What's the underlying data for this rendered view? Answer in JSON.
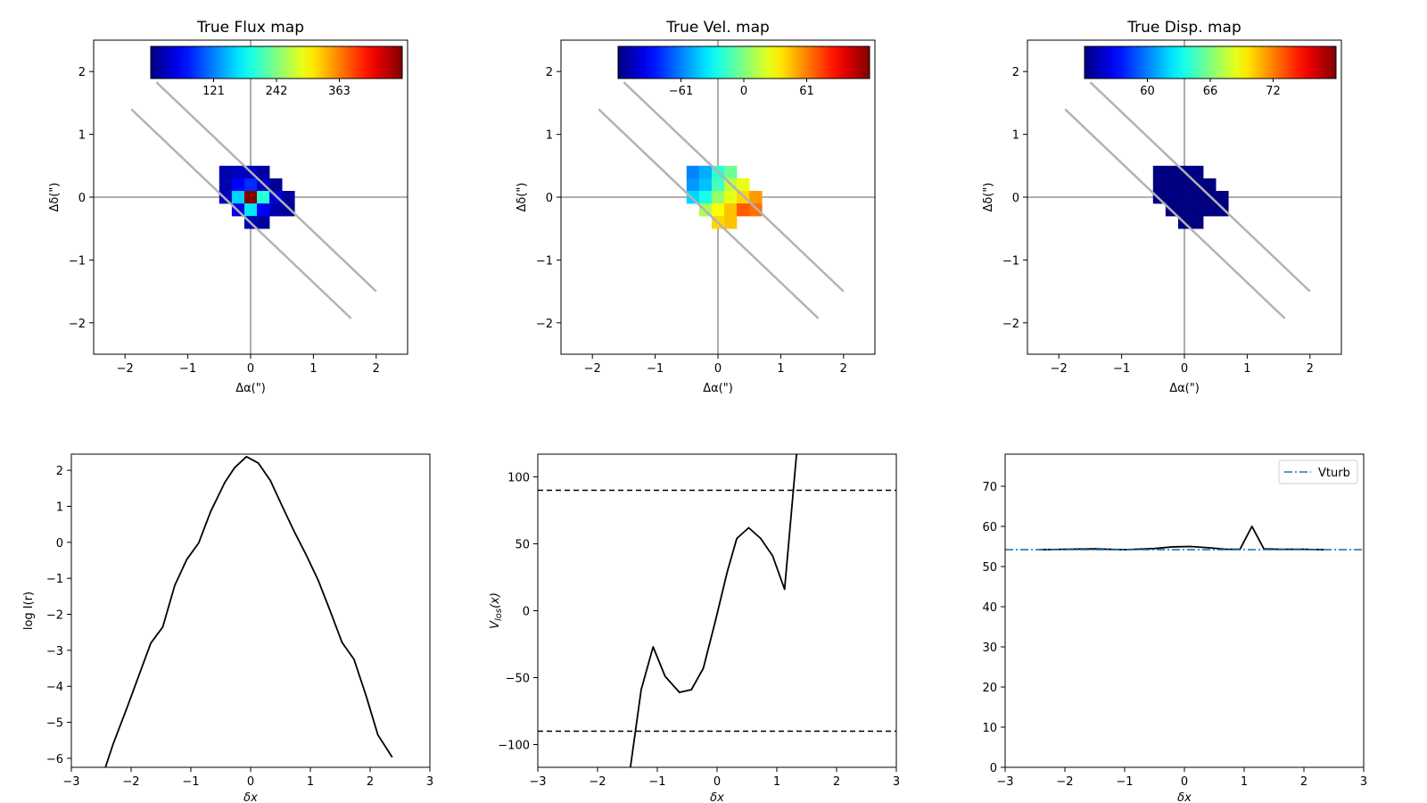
{
  "figure": {
    "background": "#ffffff"
  },
  "chart_data": [
    {
      "id": "flux-map",
      "type": "heatmap",
      "title": "True Flux map",
      "xlabel": "Δα(\")",
      "ylabel": "Δδ(\")",
      "xlim": [
        -2.5,
        2.5
      ],
      "ylim": [
        -2.5,
        2.5
      ],
      "xticks": [
        -2,
        -1,
        0,
        1,
        2
      ],
      "yticks": [
        -2,
        -1,
        0,
        1,
        2
      ],
      "xtick_labels": [
        "−2",
        "−1",
        "0",
        "1",
        "2"
      ],
      "ytick_labels": [
        "−2",
        "−1",
        "0",
        "1",
        "2"
      ],
      "colormap": "jet",
      "vmin": 0,
      "vmax": 484,
      "colorbar": {
        "ticks": [
          121,
          242,
          363
        ],
        "tick_labels": [
          "121",
          "242",
          "363"
        ],
        "location": "top-inset"
      },
      "pixel_size": 0.2,
      "cells": [
        {
          "x": -0.4,
          "y": 0.4,
          "v": 20
        },
        {
          "x": -0.2,
          "y": 0.4,
          "v": 30
        },
        {
          "x": 0.0,
          "y": 0.4,
          "v": 30
        },
        {
          "x": 0.2,
          "y": 0.4,
          "v": 15
        },
        {
          "x": -0.4,
          "y": 0.2,
          "v": 20
        },
        {
          "x": -0.2,
          "y": 0.2,
          "v": 60
        },
        {
          "x": 0.0,
          "y": 0.2,
          "v": 80
        },
        {
          "x": 0.2,
          "y": 0.2,
          "v": 30
        },
        {
          "x": 0.4,
          "y": 0.2,
          "v": 10
        },
        {
          "x": -0.4,
          "y": 0.0,
          "v": 30
        },
        {
          "x": -0.2,
          "y": 0.0,
          "v": 160
        },
        {
          "x": 0.0,
          "y": 0.0,
          "v": 484
        },
        {
          "x": 0.2,
          "y": 0.0,
          "v": 200
        },
        {
          "x": 0.4,
          "y": 0.0,
          "v": 40
        },
        {
          "x": 0.6,
          "y": 0.0,
          "v": 15
        },
        {
          "x": -0.2,
          "y": -0.2,
          "v": 50
        },
        {
          "x": 0.0,
          "y": -0.2,
          "v": 170
        },
        {
          "x": 0.2,
          "y": -0.2,
          "v": 60
        },
        {
          "x": 0.4,
          "y": -0.2,
          "v": 20
        },
        {
          "x": 0.6,
          "y": -0.2,
          "v": 10
        },
        {
          "x": 0.0,
          "y": -0.4,
          "v": 25
        },
        {
          "x": 0.2,
          "y": -0.4,
          "v": 15
        }
      ],
      "slit_lines": [
        {
          "x": [
            -1.5,
            2.0
          ],
          "y": [
            1.83,
            -1.5
          ]
        },
        {
          "x": [
            -1.9,
            1.6
          ],
          "y": [
            1.4,
            -1.93
          ]
        }
      ]
    },
    {
      "id": "vel-map",
      "type": "heatmap",
      "title": "True Vel. map",
      "xlabel": "Δα(\")",
      "ylabel": "Δδ(\")",
      "xlim": [
        -2.5,
        2.5
      ],
      "ylim": [
        -2.5,
        2.5
      ],
      "xticks": [
        -2,
        -1,
        0,
        1,
        2
      ],
      "yticks": [
        -2,
        -1,
        0,
        1,
        2
      ],
      "xtick_labels": [
        "−2",
        "−1",
        "0",
        "1",
        "2"
      ],
      "ytick_labels": [
        "−2",
        "−1",
        "0",
        "1",
        "2"
      ],
      "colormap": "jet",
      "vmin": -122,
      "vmax": 122,
      "colorbar": {
        "ticks": [
          -61,
          0,
          61
        ],
        "tick_labels": [
          "−61",
          "0",
          "61"
        ],
        "location": "top-inset"
      },
      "pixel_size": 0.2,
      "cells": [
        {
          "x": -0.4,
          "y": 0.4,
          "v": -60
        },
        {
          "x": -0.2,
          "y": 0.4,
          "v": -50
        },
        {
          "x": 0.0,
          "y": 0.4,
          "v": -20
        },
        {
          "x": 0.2,
          "y": 0.4,
          "v": -5
        },
        {
          "x": -0.4,
          "y": 0.2,
          "v": -55
        },
        {
          "x": -0.2,
          "y": 0.2,
          "v": -45
        },
        {
          "x": 0.0,
          "y": 0.2,
          "v": -15
        },
        {
          "x": 0.2,
          "y": 0.2,
          "v": 15
        },
        {
          "x": 0.4,
          "y": 0.2,
          "v": 25
        },
        {
          "x": -0.4,
          "y": 0.0,
          "v": -40
        },
        {
          "x": -0.2,
          "y": 0.0,
          "v": -25
        },
        {
          "x": 0.0,
          "y": 0.0,
          "v": 5
        },
        {
          "x": 0.2,
          "y": 0.0,
          "v": 25
        },
        {
          "x": 0.4,
          "y": 0.0,
          "v": 40
        },
        {
          "x": 0.6,
          "y": 0.0,
          "v": 55
        },
        {
          "x": -0.2,
          "y": -0.2,
          "v": 10
        },
        {
          "x": 0.0,
          "y": -0.2,
          "v": 30
        },
        {
          "x": 0.2,
          "y": -0.2,
          "v": 45
        },
        {
          "x": 0.4,
          "y": -0.2,
          "v": 70
        },
        {
          "x": 0.6,
          "y": -0.2,
          "v": 65
        },
        {
          "x": 0.0,
          "y": -0.4,
          "v": 40
        },
        {
          "x": 0.2,
          "y": -0.4,
          "v": 45
        }
      ],
      "slit_lines": [
        {
          "x": [
            -1.5,
            2.0
          ],
          "y": [
            1.83,
            -1.5
          ]
        },
        {
          "x": [
            -1.9,
            1.6
          ],
          "y": [
            1.4,
            -1.93
          ]
        }
      ]
    },
    {
      "id": "disp-map",
      "type": "heatmap",
      "title": "True Disp. map",
      "xlabel": "Δα(\")",
      "ylabel": "Δδ(\")",
      "xlim": [
        -2.5,
        2.5
      ],
      "ylim": [
        -2.5,
        2.5
      ],
      "xticks": [
        -2,
        -1,
        0,
        1,
        2
      ],
      "yticks": [
        -2,
        -1,
        0,
        1,
        2
      ],
      "xtick_labels": [
        "−2",
        "−1",
        "0",
        "1",
        "2"
      ],
      "ytick_labels": [
        "−2",
        "−1",
        "0",
        "1",
        "2"
      ],
      "colormap": "jet",
      "vmin": 54,
      "vmax": 78,
      "colorbar": {
        "ticks": [
          60,
          66,
          72
        ],
        "tick_labels": [
          "60",
          "66",
          "72"
        ],
        "location": "top-inset"
      },
      "pixel_size": 0.2,
      "cells": [
        {
          "x": -0.4,
          "y": 0.4,
          "v": 54
        },
        {
          "x": -0.2,
          "y": 0.4,
          "v": 54
        },
        {
          "x": 0.0,
          "y": 0.4,
          "v": 54
        },
        {
          "x": 0.2,
          "y": 0.4,
          "v": 54
        },
        {
          "x": -0.4,
          "y": 0.2,
          "v": 54
        },
        {
          "x": -0.2,
          "y": 0.2,
          "v": 54
        },
        {
          "x": 0.0,
          "y": 0.2,
          "v": 54
        },
        {
          "x": 0.2,
          "y": 0.2,
          "v": 54
        },
        {
          "x": 0.4,
          "y": 0.2,
          "v": 54
        },
        {
          "x": -0.4,
          "y": 0.0,
          "v": 54
        },
        {
          "x": -0.2,
          "y": 0.0,
          "v": 54
        },
        {
          "x": 0.0,
          "y": 0.0,
          "v": 54
        },
        {
          "x": 0.2,
          "y": 0.0,
          "v": 54
        },
        {
          "x": 0.4,
          "y": 0.0,
          "v": 54
        },
        {
          "x": 0.6,
          "y": 0.0,
          "v": 54
        },
        {
          "x": -0.2,
          "y": -0.2,
          "v": 54
        },
        {
          "x": 0.0,
          "y": -0.2,
          "v": 54
        },
        {
          "x": 0.2,
          "y": -0.2,
          "v": 54
        },
        {
          "x": 0.4,
          "y": -0.2,
          "v": 54
        },
        {
          "x": 0.6,
          "y": -0.2,
          "v": 54
        },
        {
          "x": 0.0,
          "y": -0.4,
          "v": 54
        },
        {
          "x": 0.2,
          "y": -0.4,
          "v": 54
        }
      ],
      "slit_lines": [
        {
          "x": [
            -1.5,
            2.0
          ],
          "y": [
            1.83,
            -1.5
          ]
        },
        {
          "x": [
            -1.9,
            1.6
          ],
          "y": [
            1.4,
            -1.93
          ]
        }
      ]
    },
    {
      "id": "flux-profile",
      "type": "line",
      "xlabel": "δx",
      "ylabel": "log I(r)",
      "xlim": [
        -3,
        3
      ],
      "ylim": [
        -6.25,
        2.45
      ],
      "xticks": [
        -3,
        -2,
        -1,
        0,
        1,
        2,
        3
      ],
      "yticks": [
        2,
        1,
        0,
        -1,
        -2,
        -3,
        -4,
        -5,
        -6
      ],
      "xtick_labels": [
        "−3",
        "−2",
        "−1",
        "0",
        "1",
        "2",
        "3"
      ],
      "ytick_labels": [
        "2",
        "1",
        "0",
        "−1",
        "−2",
        "−3",
        "−4",
        "−5",
        "−6"
      ],
      "series": [
        {
          "color": "#000000",
          "style": "solid",
          "x": [
            -2.43,
            -2.3,
            -2.07,
            -1.87,
            -1.67,
            -1.47,
            -1.27,
            -1.07,
            -0.87,
            -0.67,
            -0.43,
            -0.27,
            -0.07,
            0.13,
            0.33,
            0.53,
            0.73,
            0.93,
            1.13,
            1.33,
            1.53,
            1.73,
            1.93,
            2.13,
            2.37
          ],
          "y": [
            -6.25,
            -5.6,
            -4.6,
            -3.7,
            -2.8,
            -2.35,
            -1.2,
            -0.48,
            -0.02,
            0.85,
            1.67,
            2.07,
            2.38,
            2.2,
            1.72,
            1.0,
            0.3,
            -0.35,
            -1.05,
            -1.9,
            -2.78,
            -3.25,
            -4.25,
            -5.35,
            -5.97
          ]
        }
      ]
    },
    {
      "id": "velocity-profile",
      "type": "line",
      "xlabel": "δx",
      "ylabel": "V_los(x)",
      "xlim": [
        -3,
        3
      ],
      "ylim": [
        -117,
        117
      ],
      "xticks": [
        -3,
        -2,
        -1,
        0,
        1,
        2,
        3
      ],
      "yticks": [
        100,
        50,
        0,
        -50,
        -100
      ],
      "xtick_labels": [
        "−3",
        "−2",
        "−1",
        "0",
        "1",
        "2",
        "3"
      ],
      "ytick_labels": [
        "100",
        "50",
        "0",
        "−50",
        "−100"
      ],
      "series": [
        {
          "color": "#000000",
          "style": "solid",
          "x": [
            -1.45,
            -1.27,
            -1.07,
            -0.87,
            -0.63,
            -0.43,
            -0.23,
            -0.03,
            0.17,
            0.33,
            0.53,
            0.73,
            0.93,
            1.13,
            1.33
          ],
          "y": [
            -117,
            -59,
            -27,
            -49,
            -61,
            -59,
            -43,
            -8,
            29,
            54,
            62,
            54,
            41,
            16,
            117
          ]
        }
      ],
      "hlines": [
        {
          "y": 90,
          "style": "dashed",
          "color": "#000000"
        },
        {
          "y": -90,
          "style": "dashed",
          "color": "#000000"
        }
      ]
    },
    {
      "id": "dispersion-profile",
      "type": "line",
      "xlabel": "δx",
      "ylabel": "",
      "xlim": [
        -3,
        3
      ],
      "ylim": [
        0,
        78
      ],
      "xticks": [
        -3,
        -2,
        -1,
        0,
        1,
        2,
        3
      ],
      "yticks": [
        0,
        10,
        20,
        30,
        40,
        50,
        60,
        70
      ],
      "xtick_labels": [
        "−3",
        "−2",
        "−1",
        "0",
        "1",
        "2",
        "3"
      ],
      "ytick_labels": [
        "0",
        "10",
        "20",
        "30",
        "40",
        "50",
        "60",
        "70"
      ],
      "series": [
        {
          "color": "#000000",
          "style": "solid",
          "x": [
            -2.43,
            -2.0,
            -1.5,
            -1.0,
            -0.5,
            -0.2,
            0.1,
            0.4,
            0.7,
            0.93,
            1.13,
            1.33,
            1.6,
            2.0,
            2.33
          ],
          "y": [
            54.2,
            54.3,
            54.4,
            54.2,
            54.5,
            54.9,
            55.0,
            54.7,
            54.3,
            54.3,
            60.0,
            54.4,
            54.3,
            54.3,
            54.2
          ]
        },
        {
          "name": "Vturb",
          "color": "#1f77b4",
          "style": "dashdot",
          "x": [
            -3,
            3
          ],
          "y": [
            54.2,
            54.2
          ]
        }
      ],
      "legend": {
        "position": "top-right",
        "entries": [
          "Vturb"
        ]
      }
    }
  ]
}
